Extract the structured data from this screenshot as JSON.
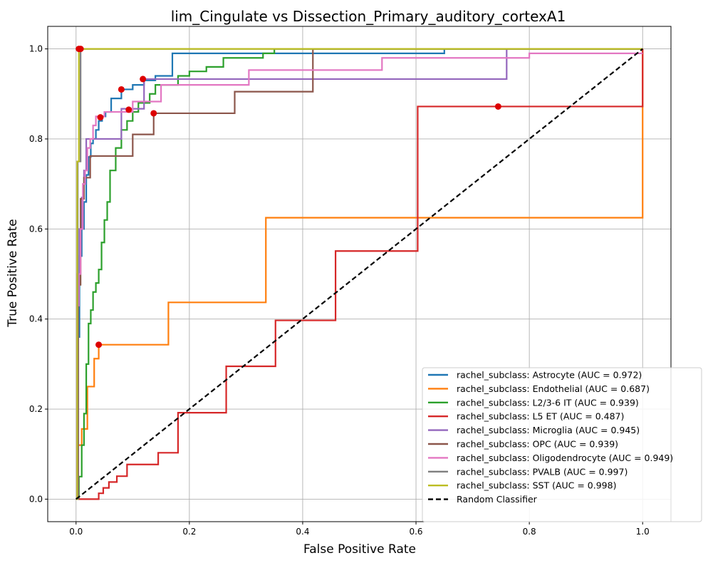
{
  "chart_data": {
    "type": "line",
    "title": "lim_Cingulate vs Dissection_Primary_auditory_cortexA1",
    "xlabel": "False Positive Rate",
    "ylabel": "True Positive Rate",
    "xlim": [
      -0.05,
      1.05
    ],
    "ylim": [
      -0.05,
      1.05
    ],
    "xticks": [
      "0.0",
      "0.2",
      "0.4",
      "0.6",
      "0.8",
      "1.0"
    ],
    "yticks": [
      "0.0",
      "0.2",
      "0.4",
      "0.6",
      "0.8",
      "1.0"
    ],
    "grid": true,
    "legend_position": "lower-right",
    "series": [
      {
        "name": "rachel_subclass: Astrocyte (AUC = 0.972)",
        "color": "#1f77b4",
        "x": [
          0.0,
          0.003,
          0.003,
          0.006,
          0.006,
          0.01,
          0.01,
          0.014,
          0.014,
          0.018,
          0.018,
          0.022,
          0.022,
          0.026,
          0.026,
          0.03,
          0.03,
          0.035,
          0.035,
          0.04,
          0.04,
          0.046,
          0.046,
          0.052,
          0.052,
          0.062,
          0.062,
          0.08,
          0.08,
          0.1,
          0.1,
          0.12,
          0.12,
          0.14,
          0.14,
          0.17,
          0.17,
          0.4,
          0.4,
          0.65,
          0.65,
          1.0
        ],
        "y": [
          0.0,
          0.0,
          0.36,
          0.36,
          0.54,
          0.54,
          0.6,
          0.6,
          0.66,
          0.66,
          0.72,
          0.72,
          0.76,
          0.76,
          0.79,
          0.79,
          0.8,
          0.8,
          0.82,
          0.82,
          0.84,
          0.84,
          0.85,
          0.85,
          0.86,
          0.86,
          0.89,
          0.89,
          0.91,
          0.91,
          0.92,
          0.92,
          0.93,
          0.93,
          0.94,
          0.94,
          0.99,
          0.99,
          0.99,
          0.99,
          1.0,
          1.0
        ]
      },
      {
        "name": "rachel_subclass: Endothelial (AUC = 0.687)",
        "color": "#ff7f0e",
        "x": [
          0.0,
          0.003,
          0.003,
          0.01,
          0.01,
          0.02,
          0.02,
          0.032,
          0.032,
          0.04,
          0.04,
          0.163,
          0.163,
          0.335,
          0.335,
          1.0,
          1.0
        ],
        "y": [
          0.0,
          0.0,
          0.12,
          0.12,
          0.156,
          0.156,
          0.25,
          0.25,
          0.312,
          0.312,
          0.343,
          0.343,
          0.437,
          0.437,
          0.625,
          0.625,
          1.0
        ]
      },
      {
        "name": "rachel_subclass: L2/3-6 IT (AUC = 0.939)",
        "color": "#2ca02c",
        "x": [
          0.0,
          0.005,
          0.005,
          0.01,
          0.01,
          0.014,
          0.014,
          0.018,
          0.018,
          0.022,
          0.022,
          0.026,
          0.026,
          0.03,
          0.03,
          0.035,
          0.035,
          0.04,
          0.04,
          0.045,
          0.045,
          0.05,
          0.05,
          0.055,
          0.055,
          0.06,
          0.06,
          0.07,
          0.07,
          0.08,
          0.08,
          0.09,
          0.09,
          0.1,
          0.1,
          0.11,
          0.11,
          0.13,
          0.13,
          0.14,
          0.14,
          0.18,
          0.18,
          0.2,
          0.2,
          0.23,
          0.23,
          0.26,
          0.26,
          0.33,
          0.33,
          0.35,
          0.35,
          0.42,
          0.42,
          1.0
        ],
        "y": [
          0.0,
          0.0,
          0.05,
          0.05,
          0.12,
          0.12,
          0.19,
          0.19,
          0.3,
          0.3,
          0.39,
          0.39,
          0.42,
          0.42,
          0.46,
          0.46,
          0.48,
          0.48,
          0.51,
          0.51,
          0.57,
          0.57,
          0.62,
          0.62,
          0.66,
          0.66,
          0.73,
          0.73,
          0.78,
          0.78,
          0.82,
          0.82,
          0.84,
          0.84,
          0.86,
          0.86,
          0.88,
          0.88,
          0.9,
          0.9,
          0.92,
          0.92,
          0.94,
          0.94,
          0.95,
          0.95,
          0.96,
          0.96,
          0.98,
          0.98,
          0.99,
          0.99,
          1.0,
          1.0,
          1.0,
          1.0
        ]
      },
      {
        "name": "rachel_subclass: L5 ET (AUC = 0.487)",
        "color": "#d62728",
        "x": [
          0.0,
          0.04,
          0.04,
          0.048,
          0.048,
          0.058,
          0.058,
          0.072,
          0.072,
          0.09,
          0.09,
          0.145,
          0.145,
          0.18,
          0.18,
          0.265,
          0.265,
          0.352,
          0.352,
          0.458,
          0.458,
          0.603,
          0.603,
          0.745,
          0.745,
          1.0,
          1.0
        ],
        "y": [
          0.0,
          0.0,
          0.013,
          0.013,
          0.025,
          0.025,
          0.038,
          0.038,
          0.051,
          0.051,
          0.077,
          0.077,
          0.103,
          0.103,
          0.192,
          0.192,
          0.295,
          0.295,
          0.397,
          0.397,
          0.551,
          0.551,
          0.872,
          0.872,
          0.872,
          0.872,
          1.0
        ]
      },
      {
        "name": "rachel_subclass: Microglia (AUC = 0.945)",
        "color": "#9467bd",
        "x": [
          0.0,
          0.002,
          0.002,
          0.006,
          0.006,
          0.01,
          0.01,
          0.014,
          0.014,
          0.018,
          0.018,
          0.08,
          0.08,
          0.12,
          0.12,
          0.76,
          0.76,
          1.0
        ],
        "y": [
          0.0,
          0.0,
          0.5,
          0.5,
          0.6,
          0.6,
          0.67,
          0.67,
          0.73,
          0.73,
          0.8,
          0.8,
          0.867,
          0.867,
          0.933,
          0.933,
          1.0,
          1.0
        ]
      },
      {
        "name": "rachel_subclass: OPC (AUC = 0.939)",
        "color": "#8c564b",
        "x": [
          0.0,
          0.004,
          0.004,
          0.008,
          0.008,
          0.014,
          0.014,
          0.025,
          0.025,
          0.055,
          0.055,
          0.1,
          0.1,
          0.137,
          0.137,
          0.28,
          0.28,
          0.418,
          0.418,
          1.0
        ],
        "y": [
          0.0,
          0.0,
          0.476,
          0.476,
          0.667,
          0.667,
          0.714,
          0.714,
          0.762,
          0.762,
          0.762,
          0.762,
          0.81,
          0.81,
          0.857,
          0.857,
          0.905,
          0.905,
          1.0,
          1.0
        ]
      },
      {
        "name": "rachel_subclass: Oligodendrocyte (AUC = 0.949)",
        "color": "#e377c2",
        "x": [
          0.0,
          0.002,
          0.002,
          0.005,
          0.005,
          0.008,
          0.008,
          0.012,
          0.012,
          0.016,
          0.016,
          0.02,
          0.02,
          0.025,
          0.025,
          0.03,
          0.03,
          0.035,
          0.035,
          0.05,
          0.05,
          0.1,
          0.1,
          0.15,
          0.15,
          0.305,
          0.305,
          0.54,
          0.54,
          0.8,
          0.8,
          1.0
        ],
        "y": [
          0.0,
          0.0,
          0.43,
          0.43,
          0.5,
          0.5,
          0.6,
          0.6,
          0.7,
          0.7,
          0.73,
          0.73,
          0.78,
          0.78,
          0.8,
          0.8,
          0.83,
          0.83,
          0.85,
          0.85,
          0.86,
          0.86,
          0.883,
          0.883,
          0.92,
          0.92,
          0.953,
          0.953,
          0.98,
          0.98,
          0.99,
          0.99
        ]
      },
      {
        "name": "rachel_subclass: PVALB (AUC = 0.997)",
        "color": "#7f7f7f",
        "x": [
          0.0,
          0.003,
          0.003,
          0.008,
          0.008,
          1.0
        ],
        "y": [
          0.0,
          0.0,
          0.75,
          0.75,
          1.0,
          1.0
        ]
      },
      {
        "name": "rachel_subclass: SST (AUC = 0.998)",
        "color": "#bcbd22",
        "x": [
          0.0,
          0.002,
          0.002,
          0.005,
          0.005,
          1.0
        ],
        "y": [
          0.0,
          0.0,
          0.75,
          0.75,
          1.0,
          1.0
        ]
      }
    ],
    "reference_line": {
      "name": "Random Classifier",
      "color": "#000000",
      "style": "dashed",
      "x": [
        0.0,
        1.0
      ],
      "y": [
        0.0,
        1.0
      ]
    },
    "optimal_points": {
      "color": "#dd0000",
      "points": [
        {
          "x": 0.08,
          "y": 0.91
        },
        {
          "x": 0.04,
          "y": 0.343
        },
        {
          "x": 0.093,
          "y": 0.865
        },
        {
          "x": 0.745,
          "y": 0.872
        },
        {
          "x": 0.118,
          "y": 0.933
        },
        {
          "x": 0.137,
          "y": 0.857
        },
        {
          "x": 0.043,
          "y": 0.848
        },
        {
          "x": 0.008,
          "y": 1.0
        },
        {
          "x": 0.005,
          "y": 1.0
        }
      ]
    }
  }
}
